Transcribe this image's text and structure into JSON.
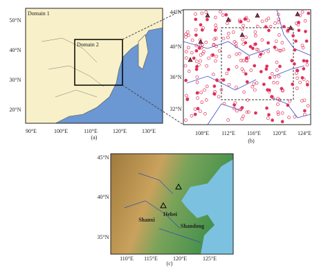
{
  "panels": [
    {
      "caption": "(a)",
      "lat_labels": [
        "50°N",
        "40°N",
        "30°N",
        "20°N"
      ],
      "lon_labels": [
        "90°E",
        "100°E",
        "110°E",
        "120°E",
        "130°E"
      ],
      "domain_labels": [
        "Domain 1",
        "Domain 2"
      ]
    },
    {
      "caption": "(b)",
      "lat_labels": [
        "44°N",
        "40°N",
        "36°N",
        "32°N"
      ],
      "lon_labels": [
        "108°E",
        "112°E",
        "116°E",
        "120°E",
        "124°E"
      ]
    },
    {
      "caption": "(c)",
      "lat_labels": [
        "45°N",
        "40°N",
        "35°N"
      ],
      "lon_labels": [
        "110°E",
        "115°E",
        "120°E",
        "125°E"
      ],
      "place_labels": [
        "Hebei",
        "Shandong",
        "Shanxi"
      ]
    }
  ]
}
